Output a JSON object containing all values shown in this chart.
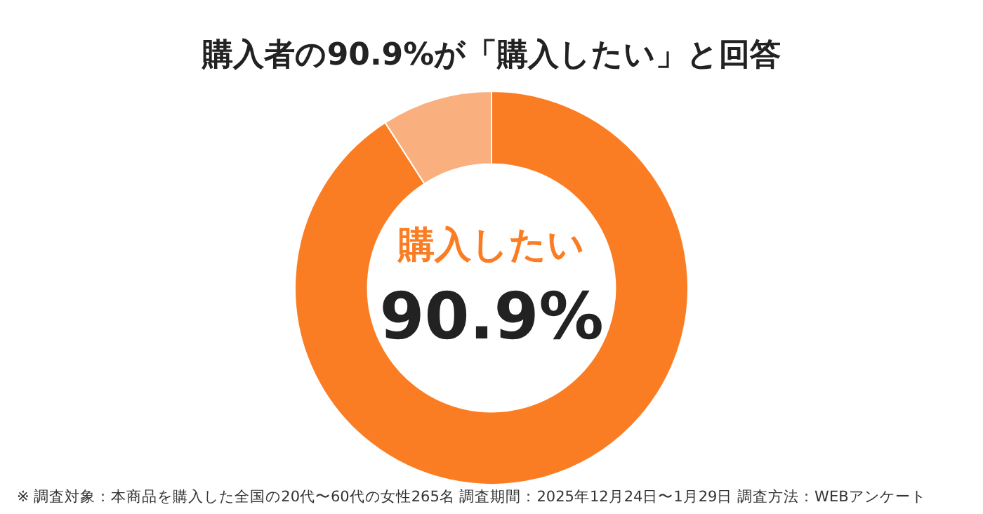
{
  "chart_data": {
    "type": "donut",
    "title": "購入者の90.9%が「購入したい」と回答",
    "categories": [
      "購入したい",
      null
    ],
    "values": [
      90.9,
      9.1
    ],
    "colors": [
      "#fb7d23",
      "#f9b07e"
    ],
    "value_labels": [
      "90.9%",
      null
    ],
    "legend": false,
    "annotations": [
      "※ 調査対象：本商品を購入した全国の20代〜60代の女性265名 調査期間：2025年12月24日〜1月29日 調査方法：WEBアンケート"
    ]
  }
}
